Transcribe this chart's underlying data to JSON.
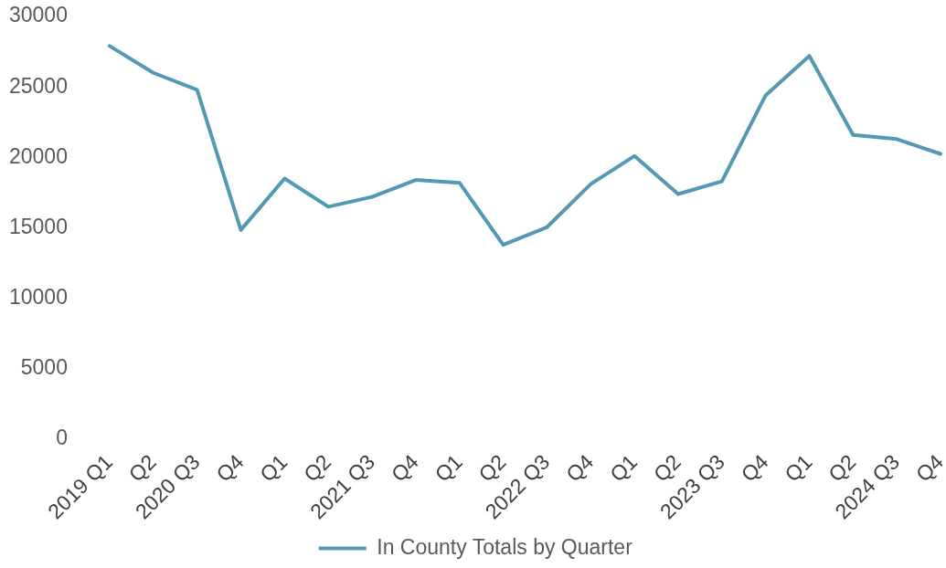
{
  "chart_data": {
    "type": "line",
    "categories": [
      "2019 Q1",
      "Q2",
      "2020 Q3",
      "Q4",
      "Q1",
      "Q2",
      "2021 Q3",
      "Q4",
      "Q1",
      "Q2",
      "2022 Q3",
      "Q4",
      "Q1",
      "Q2",
      "2023 Q3",
      "Q4",
      "Q1",
      "Q2",
      "2024 Q3",
      "Q4"
    ],
    "series": [
      {
        "name": "In County Totals by Quarter",
        "color": "#5399b3",
        "values": [
          27900,
          26000,
          24800,
          14850,
          18500,
          16500,
          17200,
          18400,
          18200,
          13800,
          15050,
          18100,
          20100,
          17400,
          18300,
          24400,
          27200,
          21600,
          21300,
          20250
        ]
      }
    ],
    "ylim": [
      0,
      30000
    ],
    "yticks": [
      0,
      5000,
      10000,
      15000,
      20000,
      25000,
      30000
    ],
    "grid": false,
    "legend": "bottom",
    "marker": "none",
    "line_style": "solid"
  }
}
